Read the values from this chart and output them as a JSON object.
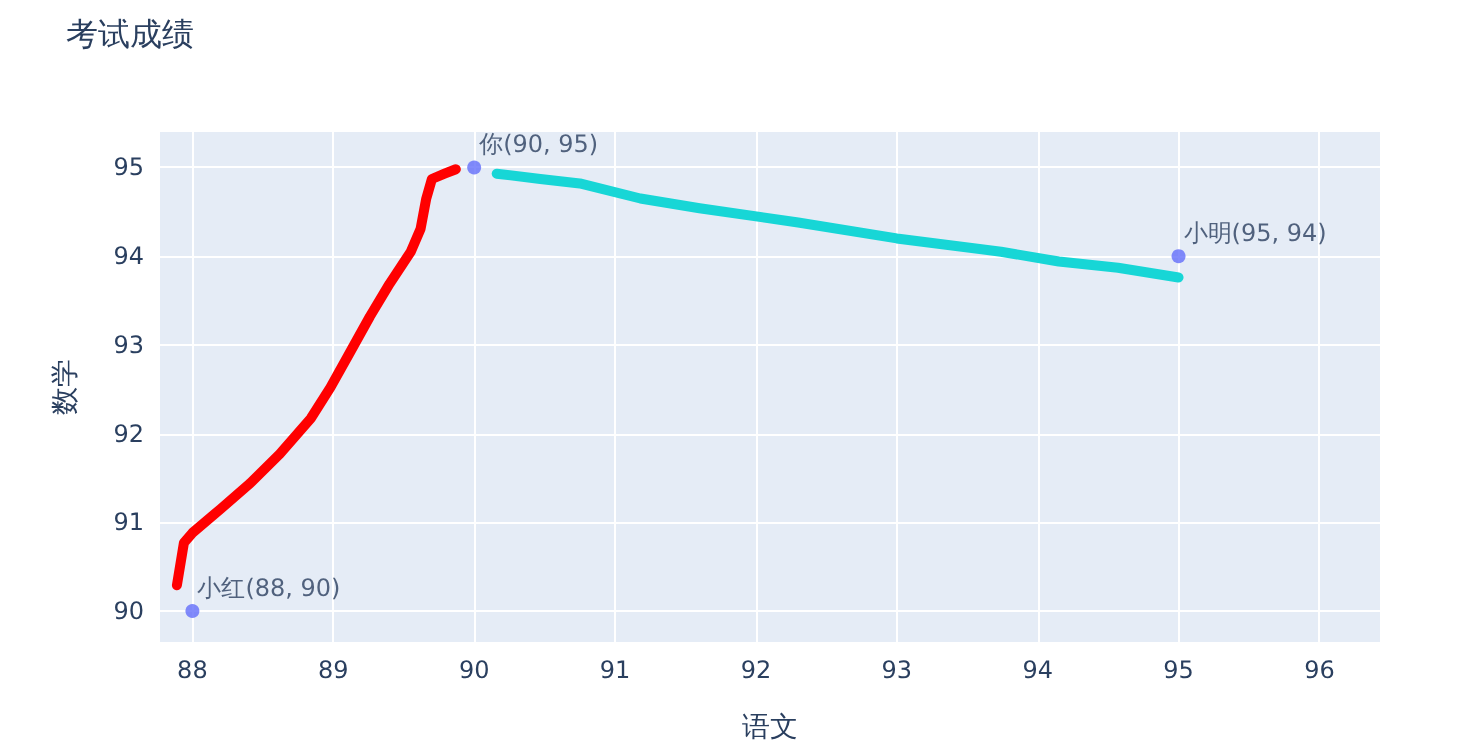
{
  "chart_data": {
    "type": "scatter",
    "title": "考试成绩",
    "xlabel": "语文",
    "ylabel": "数学",
    "xlim": [
      87.77,
      96.43
    ],
    "ylim": [
      89.65,
      95.4
    ],
    "xticks": [
      88,
      89,
      90,
      91,
      92,
      93,
      94,
      95,
      96
    ],
    "yticks": [
      90,
      91,
      92,
      93,
      94,
      95
    ],
    "grid": true,
    "series": [
      {
        "type": "line",
        "color": "#ff0000",
        "marker": "none",
        "x": [
          87.89,
          87.94,
          88.0,
          88.2,
          88.41,
          88.62,
          88.84,
          88.98,
          89.12,
          89.26,
          89.4,
          89.55,
          89.62,
          89.66,
          89.7,
          89.79,
          89.87
        ],
        "values": [
          90.29,
          90.77,
          90.88,
          91.15,
          91.44,
          91.77,
          92.17,
          92.52,
          92.92,
          93.32,
          93.69,
          94.05,
          94.31,
          94.65,
          94.87,
          94.93,
          94.98
        ]
      },
      {
        "type": "line",
        "color": "#17d6d6",
        "marker": "none",
        "x": [
          90.16,
          90.47,
          90.75,
          91.18,
          91.6,
          92.3,
          93.0,
          93.74,
          94.15,
          94.57,
          95.0
        ],
        "values": [
          94.93,
          94.87,
          94.82,
          94.65,
          94.54,
          94.38,
          94.2,
          94.05,
          93.94,
          93.87,
          93.76
        ]
      },
      {
        "color": "#636efa",
        "marker": "circle",
        "x": [
          88,
          90,
          95
        ],
        "values": [
          90,
          95,
          94
        ],
        "value_labels": [
          "小红(88, 90)",
          "你(90, 95)",
          "小明(95, 94)"
        ]
      }
    ]
  }
}
